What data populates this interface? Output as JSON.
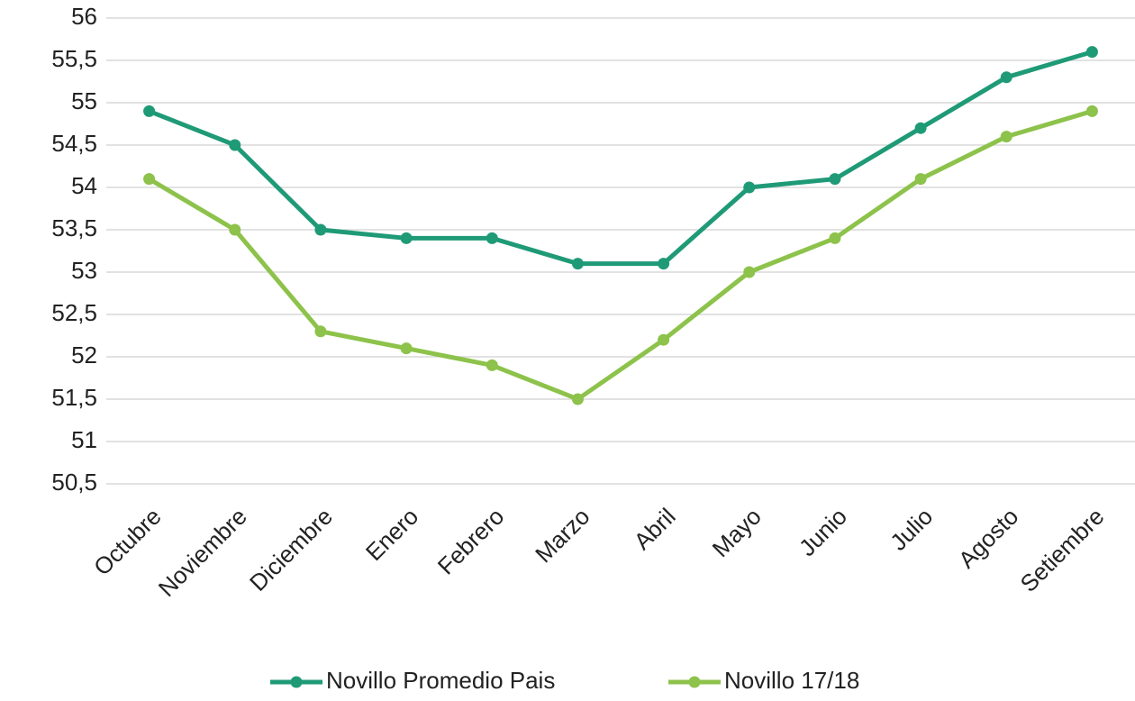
{
  "chart_data": {
    "type": "line",
    "categories": [
      "Octubre",
      "Noviembre",
      "Diciembre",
      "Enero",
      "Febrero",
      "Marzo",
      "Abril",
      "Mayo",
      "Junio",
      "Julio",
      "Agosto",
      "Setiembre"
    ],
    "series": [
      {
        "name": "Novillo Promedio Pais",
        "color": "#1f9a77",
        "values": [
          54.9,
          54.5,
          53.5,
          53.4,
          53.4,
          53.1,
          53.1,
          54.0,
          54.1,
          54.7,
          55.3,
          55.6
        ]
      },
      {
        "name": "Novillo 17/18",
        "color": "#8dc24b",
        "values": [
          54.1,
          53.5,
          52.3,
          52.1,
          51.9,
          51.5,
          52.2,
          53.0,
          53.4,
          54.1,
          54.6,
          54.9
        ]
      }
    ],
    "ylim": [
      50.5,
      56
    ],
    "yticks": [
      {
        "value": 50.5,
        "label": "50,5"
      },
      51,
      {
        "value": 51.5,
        "label": "51,5"
      },
      52,
      {
        "value": 52.5,
        "label": "52,5"
      },
      53,
      {
        "value": 53.5,
        "label": "53,5"
      },
      54,
      {
        "value": 54.5,
        "label": "54,5"
      },
      55,
      {
        "value": 55.5,
        "label": "55,5"
      },
      56
    ],
    "grid": true,
    "legend": "bottom"
  }
}
